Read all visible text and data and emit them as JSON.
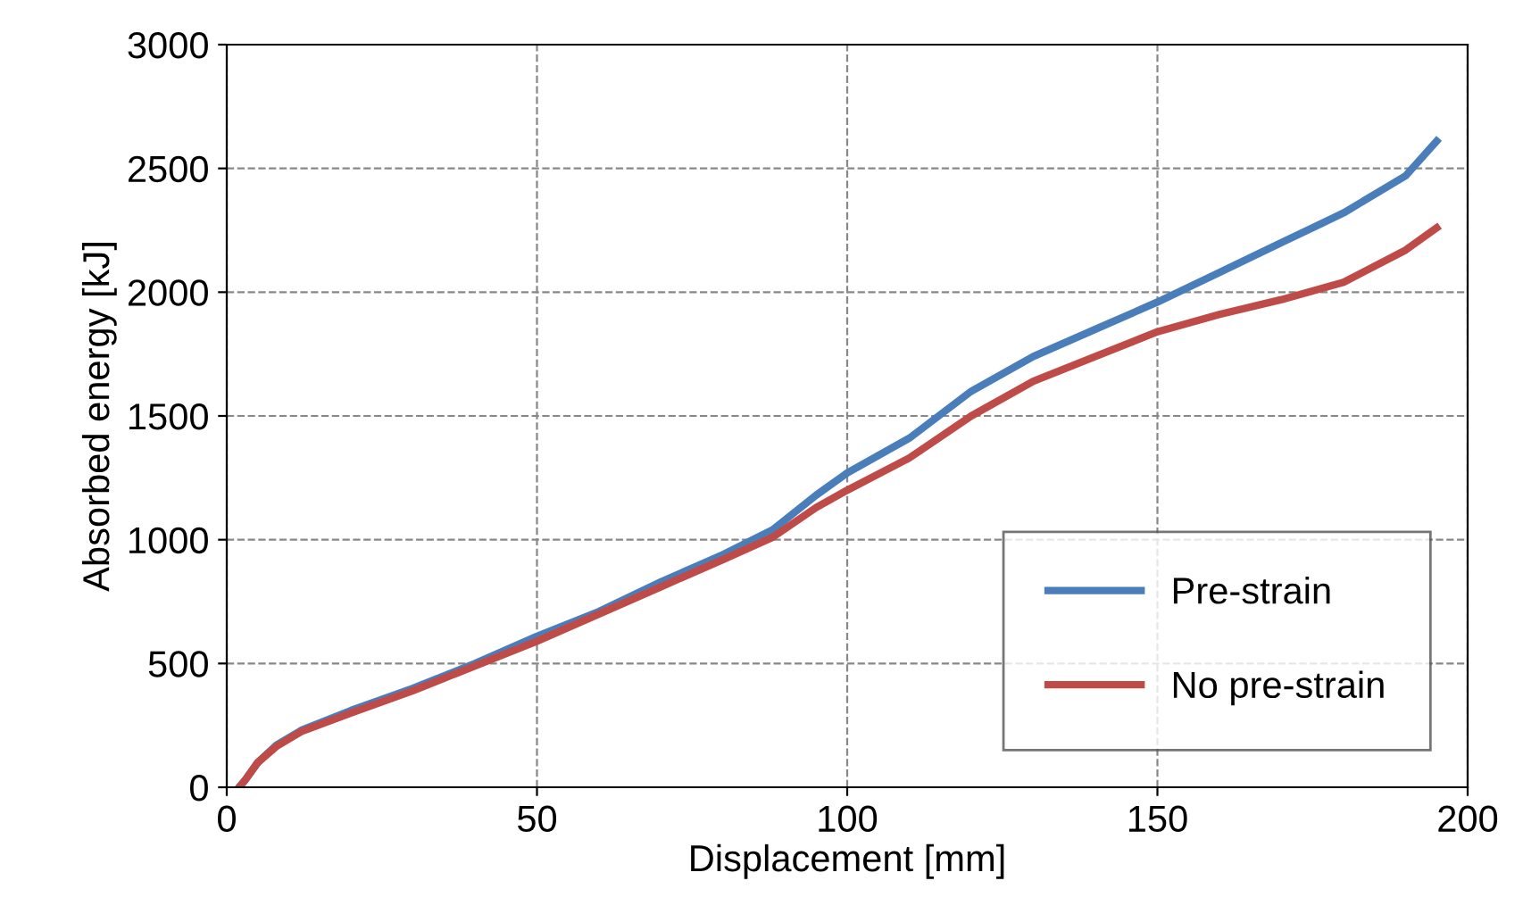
{
  "chart_data": {
    "type": "line",
    "xlabel": "Displacement [mm]",
    "ylabel": "Absorbed energy [kJ]",
    "xlim": [
      0,
      200
    ],
    "xticks": [
      0,
      50,
      100,
      150,
      200
    ],
    "ylim": [
      0,
      3000
    ],
    "yticks": [
      0,
      500,
      1000,
      1500,
      2000,
      2500,
      3000
    ],
    "grid": true,
    "legend": "bottom right",
    "marker": "none",
    "line_style": "solid",
    "series": [
      {
        "name": "Pre-strain",
        "color": "#4a7ebb",
        "x": [
          2,
          3,
          5,
          8,
          12,
          20,
          30,
          40,
          50,
          60,
          70,
          80,
          88,
          95,
          100,
          110,
          120,
          130,
          140,
          150,
          160,
          170,
          180,
          190,
          195
        ],
        "values": [
          0,
          30,
          100,
          170,
          230,
          310,
          400,
          500,
          610,
          710,
          830,
          940,
          1040,
          1180,
          1270,
          1410,
          1600,
          1740,
          1850,
          1960,
          2080,
          2200,
          2320,
          2470,
          2610
        ]
      },
      {
        "name": "No pre-strain",
        "color": "#be4b48",
        "x": [
          2,
          3,
          5,
          8,
          12,
          20,
          30,
          40,
          50,
          60,
          70,
          80,
          88,
          95,
          100,
          110,
          120,
          130,
          140,
          150,
          160,
          170,
          180,
          190,
          195
        ],
        "values": [
          0,
          30,
          100,
          165,
          225,
          300,
          390,
          490,
          590,
          700,
          810,
          920,
          1010,
          1130,
          1200,
          1330,
          1500,
          1640,
          1740,
          1840,
          1910,
          1970,
          2040,
          2170,
          2260
        ]
      }
    ]
  }
}
